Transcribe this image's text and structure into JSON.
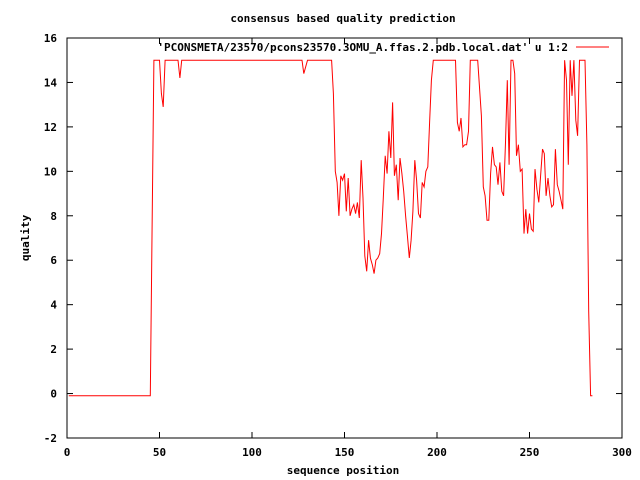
{
  "chart_data": {
    "type": "line",
    "title": "consensus based quality prediction",
    "xlabel": "sequence position",
    "ylabel": "quality",
    "xlim": [
      0,
      300
    ],
    "ylim": [
      -2,
      16
    ],
    "xticks": [
      0,
      50,
      100,
      150,
      200,
      250,
      300
    ],
    "yticks": [
      -2,
      0,
      2,
      4,
      6,
      8,
      10,
      12,
      14,
      16
    ],
    "grid": false,
    "legend_position": "top-right",
    "color": "#ff0000",
    "series": [
      {
        "name": "'PCONSMETA/23570/pcons23570.3OMU_A.ffas.2.pdb.local.dat' u 1:2",
        "x": [
          1,
          45,
          46,
          47,
          48,
          49,
          50,
          51,
          52,
          53,
          54,
          56,
          58,
          60,
          61,
          62,
          64,
          70,
          80,
          90,
          100,
          110,
          120,
          126,
          127,
          128,
          130,
          135,
          140,
          143,
          144,
          145,
          146,
          147,
          148,
          149,
          150,
          151,
          152,
          153,
          154,
          155,
          156,
          157,
          158,
          159,
          160,
          161,
          162,
          163,
          164,
          165,
          166,
          167,
          168,
          169,
          170,
          171,
          172,
          173,
          174,
          175,
          176,
          177,
          178,
          179,
          180,
          181,
          182,
          183,
          184,
          185,
          186,
          187,
          188,
          189,
          190,
          191,
          192,
          193,
          194,
          195,
          196,
          197,
          198,
          200,
          205,
          210,
          211,
          212,
          213,
          214,
          215,
          216,
          217,
          218,
          220,
          222,
          224,
          225,
          226,
          227,
          228,
          229,
          230,
          231,
          232,
          233,
          234,
          235,
          236,
          237,
          238,
          239,
          240,
          241,
          242,
          243,
          244,
          245,
          246,
          247,
          248,
          249,
          250,
          251,
          252,
          253,
          254,
          255,
          256,
          257,
          258,
          259,
          260,
          261,
          262,
          263,
          264,
          265,
          266,
          267,
          268,
          269,
          270,
          271,
          272,
          273,
          274,
          275,
          276,
          277,
          278,
          279,
          280,
          281,
          282,
          283,
          284
        ],
        "y": [
          -0.1,
          -0.1,
          7.5,
          15,
          15,
          15,
          15,
          13.5,
          12.9,
          15,
          15,
          15,
          15,
          15,
          14.2,
          15,
          15,
          15,
          15,
          15,
          15,
          15,
          15,
          15,
          15,
          14.4,
          15,
          15,
          15,
          15,
          13.5,
          10,
          9.5,
          8,
          9.8,
          9.6,
          9.9,
          8.2,
          9.7,
          8,
          8.3,
          8.5,
          8.1,
          8.6,
          7.9,
          10.5,
          8.8,
          6.2,
          5.5,
          6.9,
          6.1,
          5.8,
          5.4,
          6,
          6.1,
          6.3,
          7.2,
          8.8,
          10.7,
          9.9,
          11.8,
          10.6,
          13.1,
          9.8,
          10.3,
          8.7,
          10.6,
          9.9,
          9.1,
          8,
          7.1,
          6.1,
          6.9,
          8.2,
          10.5,
          9.6,
          8.1,
          7.9,
          9.5,
          9.3,
          10,
          10.2,
          12.2,
          14.1,
          15,
          15,
          15,
          15,
          12.2,
          11.8,
          12.4,
          11.1,
          11.2,
          11.2,
          11.8,
          15,
          15,
          15,
          12.5,
          9.3,
          8.9,
          7.8,
          7.8,
          9.9,
          11.1,
          10.3,
          10.2,
          9.4,
          10.4,
          9.1,
          8.9,
          11.3,
          14.1,
          10.3,
          15,
          15,
          14.4,
          10.7,
          11.2,
          10,
          10.1,
          7.2,
          8.3,
          7.2,
          8.1,
          7.4,
          7.3,
          10.1,
          9.2,
          8.6,
          9.8,
          11,
          10.8,
          8.9,
          9.7,
          8.9,
          8.4,
          8.5,
          11,
          9.4,
          9.1,
          8.7,
          8.3,
          15,
          14.1,
          10.3,
          15,
          13.4,
          15,
          12.3,
          11.6,
          15,
          15,
          15,
          15,
          11.2,
          3.7,
          -0.1,
          -0.1
        ]
      }
    ]
  }
}
